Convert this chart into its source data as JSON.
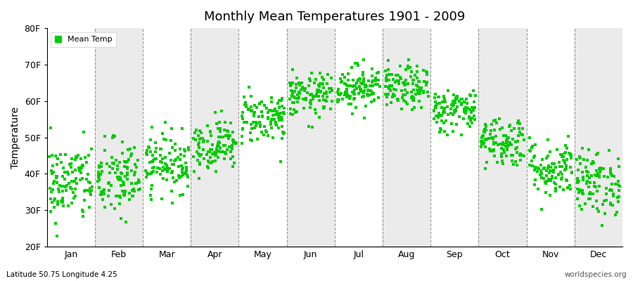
{
  "title": "Monthly Mean Temperatures 1901 - 2009",
  "ylabel": "Temperature",
  "bottom_left": "Latitude 50.75 Longitude 4.25",
  "bottom_right": "worldspecies.org",
  "legend_label": "Mean Temp",
  "dot_color": "#00cc00",
  "background_color": "#ffffff",
  "band_color_light": "#ffffff",
  "band_color_dark": "#ebebeb",
  "ylim": [
    20,
    80
  ],
  "yticks": [
    20,
    30,
    40,
    50,
    60,
    70,
    80
  ],
  "ytick_labels": [
    "20F",
    "30F",
    "40F",
    "50F",
    "60F",
    "70F",
    "80F"
  ],
  "months": [
    "Jan",
    "Feb",
    "Mar",
    "Apr",
    "May",
    "Jun",
    "Jul",
    "Aug",
    "Sep",
    "Oct",
    "Nov",
    "Dec"
  ],
  "month_means_F": [
    37.5,
    38.5,
    43.0,
    48.0,
    55.5,
    61.5,
    64.0,
    63.5,
    57.5,
    49.0,
    41.5,
    37.5
  ],
  "month_stds_F": [
    5.5,
    5.5,
    4.0,
    3.5,
    3.5,
    3.0,
    3.0,
    3.0,
    3.0,
    3.5,
    4.0,
    4.5
  ],
  "n_years": 109,
  "seed": 42
}
